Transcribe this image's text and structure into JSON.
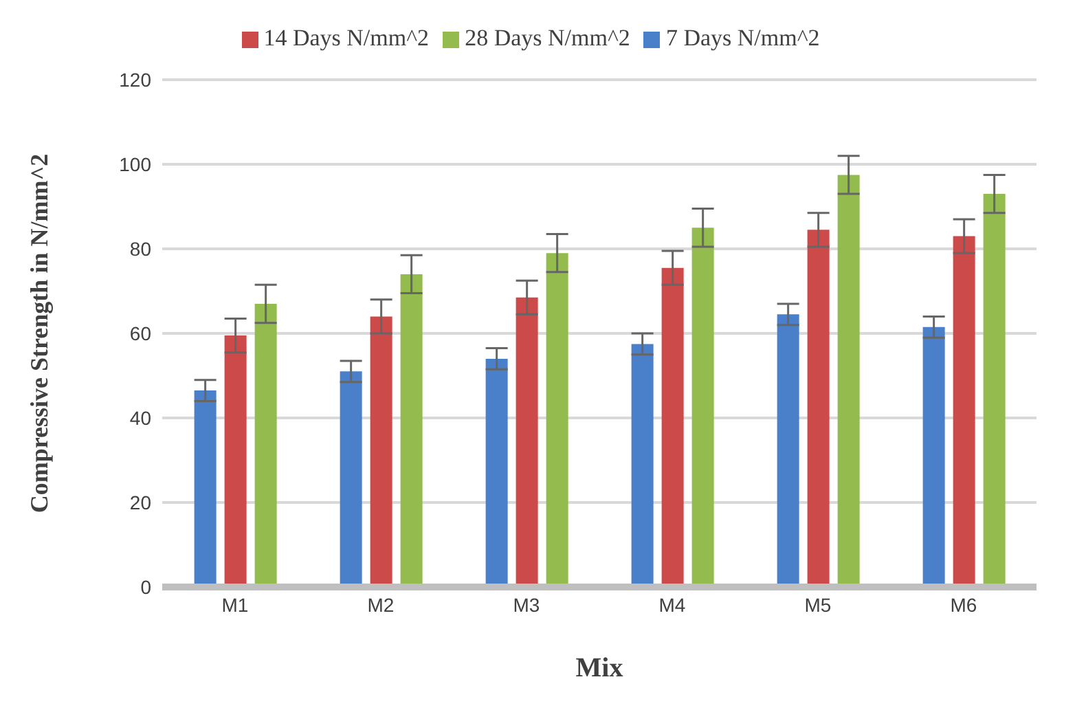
{
  "chart_data": {
    "type": "bar",
    "xlabel": "Mix",
    "ylabel": "Compressive Strength in N/mm^2",
    "categories": [
      "M1",
      "M2",
      "M3",
      "M4",
      "M5",
      "M6"
    ],
    "series": [
      {
        "name": "7 Days N/mm^2",
        "color": "#4a7fc9",
        "values": [
          46.5,
          51,
          54,
          57.5,
          64.5,
          61.5
        ],
        "errors": [
          2.5,
          2.5,
          2.5,
          2.5,
          2.5,
          2.5
        ]
      },
      {
        "name": "14 Days N/mm^2",
        "color": "#cd4a4a",
        "values": [
          59.5,
          64,
          68.5,
          75.5,
          84.5,
          83
        ],
        "errors": [
          4,
          4,
          4,
          4,
          4,
          4
        ]
      },
      {
        "name": "28 Days N/mm^2",
        "color": "#93bb4e",
        "values": [
          67,
          74,
          79,
          85,
          97.5,
          93
        ],
        "errors": [
          4.5,
          4.5,
          4.5,
          4.5,
          4.5,
          4.5
        ]
      }
    ],
    "ylim": [
      0,
      120
    ],
    "yticks": [
      0,
      20,
      40,
      60,
      80,
      100,
      120
    ],
    "grid": "y",
    "legend": "top"
  }
}
